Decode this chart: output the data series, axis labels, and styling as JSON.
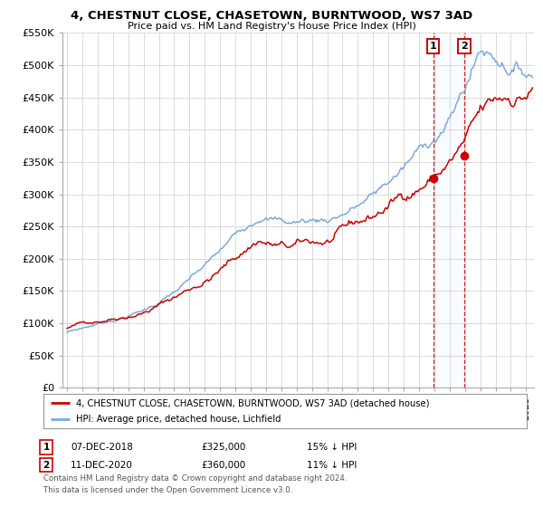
{
  "title": "4, CHESTNUT CLOSE, CHASETOWN, BURNTWOOD, WS7 3AD",
  "subtitle": "Price paid vs. HM Land Registry's House Price Index (HPI)",
  "legend_line1": "4, CHESTNUT CLOSE, CHASETOWN, BURNTWOOD, WS7 3AD (detached house)",
  "legend_line2": "HPI: Average price, detached house, Lichfield",
  "footnote1": "Contains HM Land Registry data © Crown copyright and database right 2024.",
  "footnote2": "This data is licensed under the Open Government Licence v3.0.",
  "ylim": [
    0,
    550000
  ],
  "yticks": [
    0,
    50000,
    100000,
    150000,
    200000,
    250000,
    300000,
    350000,
    400000,
    450000,
    500000,
    550000
  ],
  "ytick_labels": [
    "£0",
    "£50K",
    "£100K",
    "£150K",
    "£200K",
    "£250K",
    "£300K",
    "£350K",
    "£400K",
    "£450K",
    "£500K",
    "£550K"
  ],
  "xmin": 1994.7,
  "xmax": 2025.5,
  "sale1_x": 2018.92,
  "sale1_y": 325000,
  "sale1_label": "1",
  "sale1_date": "07-DEC-2018",
  "sale1_price": "£325,000",
  "sale1_hpi": "15% ↓ HPI",
  "sale2_x": 2020.95,
  "sale2_y": 360000,
  "sale2_label": "2",
  "sale2_date": "11-DEC-2020",
  "sale2_price": "£360,000",
  "sale2_hpi": "11% ↓ HPI",
  "red_color": "#cc0000",
  "blue_color": "#7aaadd",
  "shaded_color": "#ddeeff",
  "background_color": "#ffffff",
  "grid_color": "#cccccc"
}
